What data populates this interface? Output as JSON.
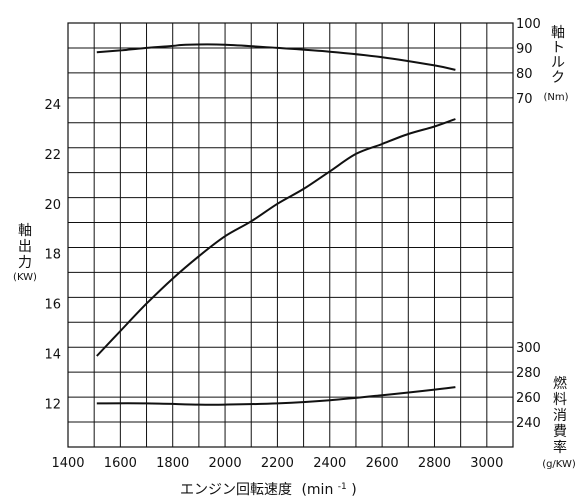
{
  "chart_data": {
    "type": "line",
    "xlabel": "エンジン回転速度",
    "xunit": "(min",
    "xunit_sup": "-1",
    "xunit_close": ")",
    "left_axis": {
      "label": [
        "軸",
        "出",
        "力"
      ],
      "unit": "(KW)",
      "ticks": [
        12,
        14,
        16,
        18,
        20,
        22,
        24
      ]
    },
    "right_top_axis": {
      "label": [
        "軸",
        "ト",
        "ル",
        "ク"
      ],
      "unit": "(Nm)",
      "ticks": [
        70,
        80,
        90,
        100
      ]
    },
    "right_bottom_axis": {
      "label": [
        "燃",
        "料",
        "消",
        "費",
        "率"
      ],
      "unit": "(g/KW)",
      "ticks": [
        240,
        260,
        280,
        300
      ]
    },
    "x_ticks": [
      1400,
      1600,
      1800,
      2000,
      2200,
      2400,
      2600,
      2800,
      3000
    ],
    "xlim": [
      1400,
      3000
    ],
    "ylim_power": [
      10.25,
      27.25
    ],
    "series": [
      {
        "key": "torque",
        "axis": "right_top_axis",
        "points": [
          [
            1510,
            88.3
          ],
          [
            1600,
            89.0
          ],
          [
            1700,
            90.0
          ],
          [
            1800,
            90.8
          ],
          [
            1850,
            91.3
          ],
          [
            2000,
            91.3
          ],
          [
            2200,
            90.0
          ],
          [
            2400,
            88.5
          ],
          [
            2600,
            86.3
          ],
          [
            2800,
            83.0
          ],
          [
            2880,
            81.2
          ]
        ]
      },
      {
        "key": "power",
        "axis": "left_axis",
        "points": [
          [
            1510,
            13.9
          ],
          [
            1600,
            14.9
          ],
          [
            1700,
            16.0
          ],
          [
            1800,
            17.0
          ],
          [
            1900,
            17.9
          ],
          [
            2000,
            18.7
          ],
          [
            2100,
            19.3
          ],
          [
            2200,
            20.0
          ],
          [
            2300,
            20.6
          ],
          [
            2400,
            21.3
          ],
          [
            2500,
            22.0
          ],
          [
            2600,
            22.4
          ],
          [
            2700,
            22.8
          ],
          [
            2800,
            23.1
          ],
          [
            2880,
            23.4
          ]
        ]
      },
      {
        "key": "fuel",
        "axis": "right_bottom_axis",
        "points": [
          [
            1510,
            255
          ],
          [
            1700,
            255
          ],
          [
            1900,
            254
          ],
          [
            2000,
            254
          ],
          [
            2200,
            255
          ],
          [
            2400,
            257.5
          ],
          [
            2600,
            261.5
          ],
          [
            2800,
            266
          ],
          [
            2880,
            268
          ]
        ]
      }
    ]
  }
}
